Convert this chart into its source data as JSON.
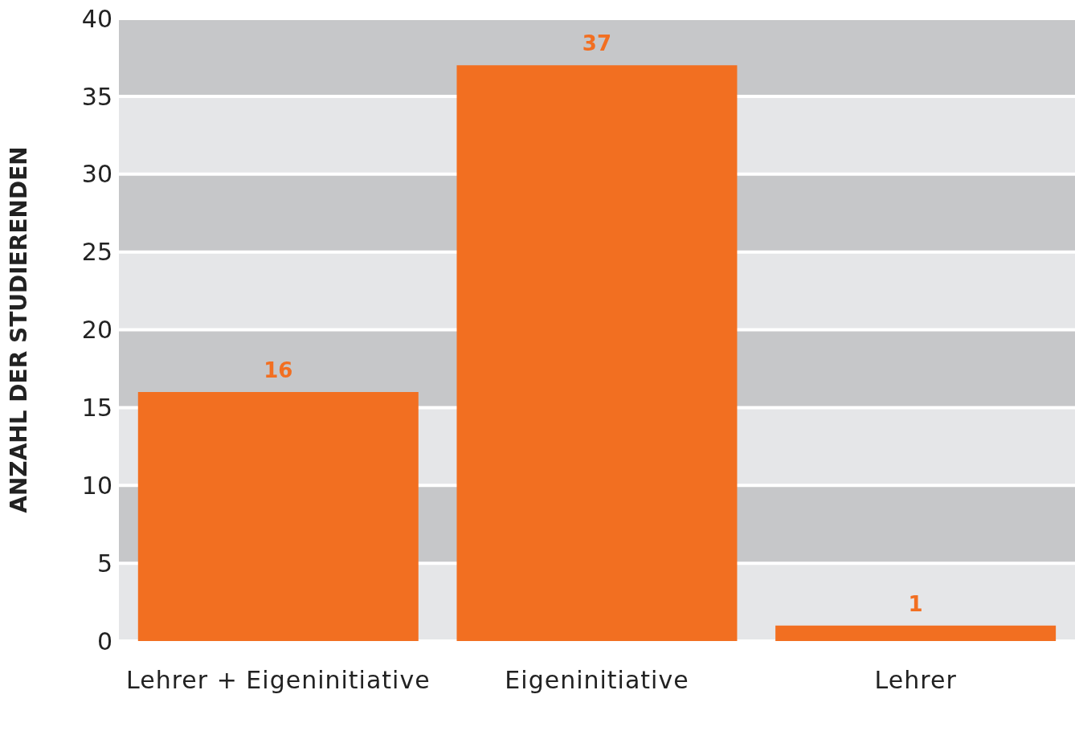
{
  "chart_data": {
    "type": "bar",
    "ylabel": "ANZAHL DER STUDIERENDEN",
    "categories": [
      "Lehrer + Eigeninitiative",
      "Eigeninitiative",
      "Lehrer"
    ],
    "values": [
      16,
      37,
      1
    ],
    "color": "#f26f21",
    "ylim": [
      0,
      40
    ],
    "yticks": [
      0,
      5,
      10,
      15,
      20,
      25,
      30,
      35,
      40
    ],
    "grid": "y",
    "data_labels": true
  }
}
